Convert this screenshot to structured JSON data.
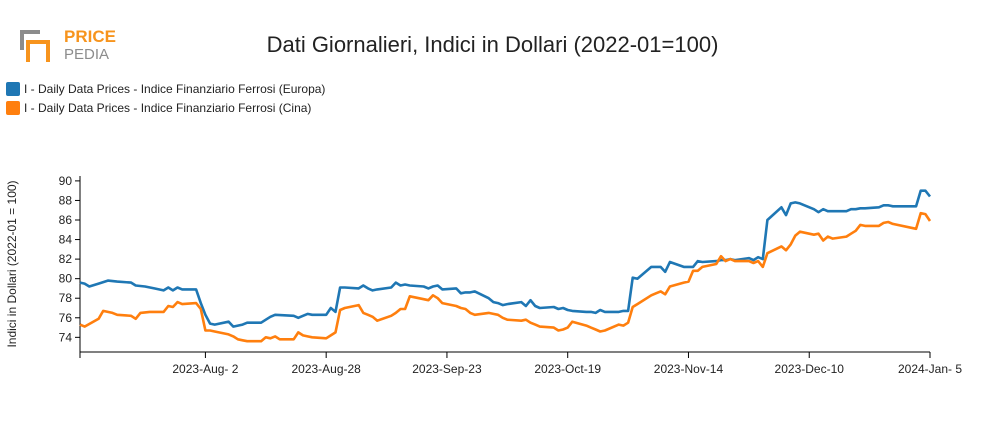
{
  "logo": {
    "text_top": "PRICE",
    "text_bottom": "PEDIA",
    "accent": "#f7941d",
    "mark_color": "#8c8c8c"
  },
  "chart_data": {
    "type": "line",
    "title": "Dati Giornalieri, Indici in Dollari (2022-01=100)",
    "xlabel": "",
    "ylabel": "Indici in Dollari (2022-01 = 100)",
    "ylim": [
      72.5,
      90.5
    ],
    "yticks": [
      74,
      76,
      78,
      80,
      82,
      84,
      86,
      88,
      90
    ],
    "xlim": [
      "2023-07-06",
      "2024-01-05"
    ],
    "xticks": [
      {
        "date": "2023-08-02",
        "label": "2023-Aug- 2"
      },
      {
        "date": "2023-08-28",
        "label": "2023-Aug-28"
      },
      {
        "date": "2023-09-23",
        "label": "2023-Sep-23"
      },
      {
        "date": "2023-10-19",
        "label": "2023-Oct-19"
      },
      {
        "date": "2023-11-14",
        "label": "2023-Nov-14"
      },
      {
        "date": "2023-12-10",
        "label": "2023-Dec-10"
      },
      {
        "date": "2024-01-05",
        "label": "2024-Jan- 5"
      }
    ],
    "legend_position": "top-left",
    "grid": false,
    "series": [
      {
        "name": "I - Daily Data Prices - Indice Finanziario Ferrosi (Europa)",
        "color": "#1f77b4",
        "points": [
          [
            "2023-07-06",
            79.6
          ],
          [
            "2023-07-07",
            79.5
          ],
          [
            "2023-07-08",
            79.2
          ],
          [
            "2023-07-10",
            79.5
          ],
          [
            "2023-07-12",
            79.8
          ],
          [
            "2023-07-14",
            79.7
          ],
          [
            "2023-07-17",
            79.6
          ],
          [
            "2023-07-18",
            79.3
          ],
          [
            "2023-07-20",
            79.2
          ],
          [
            "2023-07-22",
            79.0
          ],
          [
            "2023-07-24",
            78.8
          ],
          [
            "2023-07-25",
            79.1
          ],
          [
            "2023-07-26",
            78.8
          ],
          [
            "2023-07-27",
            79.1
          ],
          [
            "2023-07-28",
            78.9
          ],
          [
            "2023-07-31",
            78.9
          ],
          [
            "2023-08-01",
            77.5
          ],
          [
            "2023-08-02",
            76.3
          ],
          [
            "2023-08-03",
            75.4
          ],
          [
            "2023-08-04",
            75.3
          ],
          [
            "2023-08-07",
            75.6
          ],
          [
            "2023-08-08",
            75.1
          ],
          [
            "2023-08-09",
            75.2
          ],
          [
            "2023-08-10",
            75.3
          ],
          [
            "2023-08-11",
            75.5
          ],
          [
            "2023-08-14",
            75.5
          ],
          [
            "2023-08-15",
            75.8
          ],
          [
            "2023-08-16",
            76.1
          ],
          [
            "2023-08-17",
            76.3
          ],
          [
            "2023-08-21",
            76.2
          ],
          [
            "2023-08-22",
            76.0
          ],
          [
            "2023-08-23",
            76.2
          ],
          [
            "2023-08-24",
            76.4
          ],
          [
            "2023-08-25",
            76.3
          ],
          [
            "2023-08-28",
            76.3
          ],
          [
            "2023-08-29",
            77.0
          ],
          [
            "2023-08-30",
            76.6
          ],
          [
            "2023-08-31",
            79.1
          ],
          [
            "2023-09-01",
            79.1
          ],
          [
            "2023-09-04",
            79.0
          ],
          [
            "2023-09-05",
            79.3
          ],
          [
            "2023-09-06",
            79.0
          ],
          [
            "2023-09-07",
            78.8
          ],
          [
            "2023-09-08",
            78.9
          ],
          [
            "2023-09-11",
            79.1
          ],
          [
            "2023-09-12",
            79.6
          ],
          [
            "2023-09-13",
            79.3
          ],
          [
            "2023-09-14",
            79.4
          ],
          [
            "2023-09-15",
            79.3
          ],
          [
            "2023-09-18",
            79.2
          ],
          [
            "2023-09-19",
            79.0
          ],
          [
            "2023-09-20",
            79.2
          ],
          [
            "2023-09-21",
            79.3
          ],
          [
            "2023-09-22",
            78.9
          ],
          [
            "2023-09-25",
            79.0
          ],
          [
            "2023-09-26",
            78.5
          ],
          [
            "2023-09-27",
            78.6
          ],
          [
            "2023-09-28",
            78.6
          ],
          [
            "2023-09-29",
            78.7
          ],
          [
            "2023-10-02",
            78.0
          ],
          [
            "2023-10-03",
            77.6
          ],
          [
            "2023-10-04",
            77.5
          ],
          [
            "2023-10-05",
            77.3
          ],
          [
            "2023-10-06",
            77.4
          ],
          [
            "2023-10-09",
            77.6
          ],
          [
            "2023-10-10",
            77.2
          ],
          [
            "2023-10-11",
            77.8
          ],
          [
            "2023-10-12",
            77.2
          ],
          [
            "2023-10-13",
            77.0
          ],
          [
            "2023-10-16",
            77.1
          ],
          [
            "2023-10-17",
            76.9
          ],
          [
            "2023-10-18",
            77.0
          ],
          [
            "2023-10-19",
            76.8
          ],
          [
            "2023-10-20",
            76.7
          ],
          [
            "2023-10-23",
            76.6
          ],
          [
            "2023-10-24",
            76.6
          ],
          [
            "2023-10-25",
            76.5
          ],
          [
            "2023-10-26",
            76.8
          ],
          [
            "2023-10-27",
            76.6
          ],
          [
            "2023-10-30",
            76.6
          ],
          [
            "2023-10-31",
            76.7
          ],
          [
            "2023-11-01",
            76.7
          ],
          [
            "2023-11-02",
            80.1
          ],
          [
            "2023-11-03",
            80.0
          ],
          [
            "2023-11-06",
            81.2
          ],
          [
            "2023-11-07",
            81.2
          ],
          [
            "2023-11-08",
            81.2
          ],
          [
            "2023-11-09",
            80.7
          ],
          [
            "2023-11-10",
            81.7
          ],
          [
            "2023-11-13",
            81.2
          ],
          [
            "2023-11-14",
            81.2
          ],
          [
            "2023-11-15",
            81.2
          ],
          [
            "2023-11-16",
            81.8
          ],
          [
            "2023-11-17",
            81.7
          ],
          [
            "2023-11-20",
            81.8
          ],
          [
            "2023-11-21",
            81.9
          ],
          [
            "2023-11-22",
            81.9
          ],
          [
            "2023-11-23",
            82.0
          ],
          [
            "2023-11-24",
            81.9
          ],
          [
            "2023-11-27",
            82.1
          ],
          [
            "2023-11-28",
            81.9
          ],
          [
            "2023-11-29",
            82.2
          ],
          [
            "2023-11-30",
            82.0
          ],
          [
            "2023-12-01",
            86.0
          ],
          [
            "2023-12-04",
            87.3
          ],
          [
            "2023-12-05",
            86.5
          ],
          [
            "2023-12-06",
            87.7
          ],
          [
            "2023-12-07",
            87.8
          ],
          [
            "2023-12-08",
            87.7
          ],
          [
            "2023-12-11",
            87.1
          ],
          [
            "2023-12-12",
            86.8
          ],
          [
            "2023-12-13",
            87.1
          ],
          [
            "2023-12-14",
            86.9
          ],
          [
            "2023-12-15",
            86.9
          ],
          [
            "2023-12-18",
            86.9
          ],
          [
            "2023-12-19",
            87.1
          ],
          [
            "2023-12-20",
            87.1
          ],
          [
            "2023-12-21",
            87.2
          ],
          [
            "2023-12-22",
            87.2
          ],
          [
            "2023-12-25",
            87.3
          ],
          [
            "2023-12-26",
            87.5
          ],
          [
            "2023-12-27",
            87.5
          ],
          [
            "2023-12-28",
            87.4
          ],
          [
            "2024-01-02",
            87.4
          ],
          [
            "2024-01-03",
            89.0
          ],
          [
            "2024-01-04",
            89.0
          ],
          [
            "2024-01-05",
            88.4
          ]
        ]
      },
      {
        "name": "I - Daily Data Prices - Indice Finanziario Ferrosi (Cina)",
        "color": "#ff7f0e",
        "points": [
          [
            "2023-07-06",
            75.3
          ],
          [
            "2023-07-07",
            75.1
          ],
          [
            "2023-07-10",
            75.9
          ],
          [
            "2023-07-11",
            76.7
          ],
          [
            "2023-07-13",
            76.5
          ],
          [
            "2023-07-14",
            76.3
          ],
          [
            "2023-07-17",
            76.2
          ],
          [
            "2023-07-18",
            75.9
          ],
          [
            "2023-07-19",
            76.5
          ],
          [
            "2023-07-21",
            76.6
          ],
          [
            "2023-07-24",
            76.6
          ],
          [
            "2023-07-25",
            77.2
          ],
          [
            "2023-07-26",
            77.1
          ],
          [
            "2023-07-27",
            77.6
          ],
          [
            "2023-07-28",
            77.4
          ],
          [
            "2023-07-31",
            77.5
          ],
          [
            "2023-08-01",
            76.9
          ],
          [
            "2023-08-02",
            74.7
          ],
          [
            "2023-08-03",
            74.7
          ],
          [
            "2023-08-04",
            74.6
          ],
          [
            "2023-08-07",
            74.3
          ],
          [
            "2023-08-08",
            74.1
          ],
          [
            "2023-08-09",
            73.8
          ],
          [
            "2023-08-10",
            73.7
          ],
          [
            "2023-08-11",
            73.6
          ],
          [
            "2023-08-14",
            73.6
          ],
          [
            "2023-08-15",
            74.0
          ],
          [
            "2023-08-16",
            73.9
          ],
          [
            "2023-08-17",
            74.1
          ],
          [
            "2023-08-18",
            73.8
          ],
          [
            "2023-08-21",
            73.8
          ],
          [
            "2023-08-22",
            74.5
          ],
          [
            "2023-08-23",
            74.2
          ],
          [
            "2023-08-24",
            74.1
          ],
          [
            "2023-08-25",
            74.0
          ],
          [
            "2023-08-28",
            73.9
          ],
          [
            "2023-08-29",
            74.2
          ],
          [
            "2023-08-30",
            74.5
          ],
          [
            "2023-08-31",
            76.8
          ],
          [
            "2023-09-01",
            77.0
          ],
          [
            "2023-09-04",
            77.3
          ],
          [
            "2023-09-05",
            76.5
          ],
          [
            "2023-09-06",
            76.3
          ],
          [
            "2023-09-07",
            76.1
          ],
          [
            "2023-09-08",
            75.7
          ],
          [
            "2023-09-11",
            76.2
          ],
          [
            "2023-09-12",
            76.5
          ],
          [
            "2023-09-13",
            76.9
          ],
          [
            "2023-09-14",
            76.9
          ],
          [
            "2023-09-15",
            78.2
          ],
          [
            "2023-09-18",
            77.9
          ],
          [
            "2023-09-19",
            77.8
          ],
          [
            "2023-09-20",
            78.3
          ],
          [
            "2023-09-21",
            78.0
          ],
          [
            "2023-09-22",
            77.5
          ],
          [
            "2023-09-25",
            77.2
          ],
          [
            "2023-09-26",
            77.0
          ],
          [
            "2023-09-27",
            76.9
          ],
          [
            "2023-09-28",
            76.5
          ],
          [
            "2023-09-29",
            76.3
          ],
          [
            "2023-10-02",
            76.5
          ],
          [
            "2023-10-03",
            76.4
          ],
          [
            "2023-10-04",
            76.3
          ],
          [
            "2023-10-05",
            76.0
          ],
          [
            "2023-10-06",
            75.8
          ],
          [
            "2023-10-09",
            75.7
          ],
          [
            "2023-10-10",
            75.8
          ],
          [
            "2023-10-11",
            75.5
          ],
          [
            "2023-10-12",
            75.3
          ],
          [
            "2023-10-13",
            75.1
          ],
          [
            "2023-10-16",
            75.0
          ],
          [
            "2023-10-17",
            74.7
          ],
          [
            "2023-10-18",
            74.8
          ],
          [
            "2023-10-19",
            75.0
          ],
          [
            "2023-10-20",
            75.6
          ],
          [
            "2023-10-23",
            75.2
          ],
          [
            "2023-10-24",
            75.0
          ],
          [
            "2023-10-25",
            74.8
          ],
          [
            "2023-10-26",
            74.6
          ],
          [
            "2023-10-27",
            74.7
          ],
          [
            "2023-10-30",
            75.3
          ],
          [
            "2023-10-31",
            75.2
          ],
          [
            "2023-11-01",
            75.5
          ],
          [
            "2023-11-02",
            77.1
          ],
          [
            "2023-11-03",
            77.4
          ],
          [
            "2023-11-06",
            78.3
          ],
          [
            "2023-11-07",
            78.5
          ],
          [
            "2023-11-08",
            78.7
          ],
          [
            "2023-11-09",
            78.4
          ],
          [
            "2023-11-10",
            79.2
          ],
          [
            "2023-11-13",
            79.6
          ],
          [
            "2023-11-14",
            79.7
          ],
          [
            "2023-11-15",
            80.8
          ],
          [
            "2023-11-16",
            80.8
          ],
          [
            "2023-11-17",
            81.2
          ],
          [
            "2023-11-20",
            81.5
          ],
          [
            "2023-11-21",
            82.3
          ],
          [
            "2023-11-22",
            81.8
          ],
          [
            "2023-11-23",
            82.0
          ],
          [
            "2023-11-24",
            81.8
          ],
          [
            "2023-11-27",
            81.8
          ],
          [
            "2023-11-28",
            81.6
          ],
          [
            "2023-11-29",
            81.8
          ],
          [
            "2023-11-30",
            81.2
          ],
          [
            "2023-12-01",
            82.6
          ],
          [
            "2023-12-04",
            83.3
          ],
          [
            "2023-12-05",
            82.9
          ],
          [
            "2023-12-06",
            83.5
          ],
          [
            "2023-12-07",
            84.4
          ],
          [
            "2023-12-08",
            84.8
          ],
          [
            "2023-12-11",
            84.5
          ],
          [
            "2023-12-12",
            84.6
          ],
          [
            "2023-12-13",
            83.9
          ],
          [
            "2023-12-14",
            84.3
          ],
          [
            "2023-12-15",
            84.1
          ],
          [
            "2023-12-18",
            84.3
          ],
          [
            "2023-12-19",
            84.6
          ],
          [
            "2023-12-20",
            84.9
          ],
          [
            "2023-12-21",
            85.5
          ],
          [
            "2023-12-22",
            85.4
          ],
          [
            "2023-12-25",
            85.4
          ],
          [
            "2023-12-26",
            85.7
          ],
          [
            "2023-12-27",
            85.8
          ],
          [
            "2023-12-28",
            85.6
          ],
          [
            "2024-01-02",
            85.1
          ],
          [
            "2024-01-03",
            86.7
          ],
          [
            "2024-01-04",
            86.6
          ],
          [
            "2024-01-05",
            85.9
          ]
        ]
      }
    ]
  }
}
